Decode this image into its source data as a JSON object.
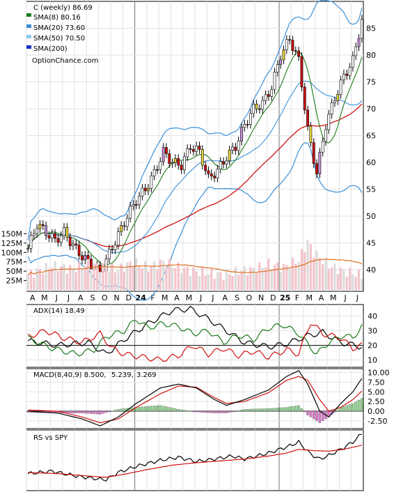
{
  "chart_data": [
    {
      "type": "candlestick",
      "title": "C (weekly) 86.69",
      "watermark": "OptionChance.com",
      "ylim": [
        36,
        90
      ],
      "yticks": [
        40,
        45,
        50,
        55,
        60,
        65,
        70,
        75,
        80,
        85
      ],
      "x_month_labels": [
        "A",
        "M",
        "J",
        "J",
        "A",
        "S",
        "O",
        "N",
        "D",
        "24",
        "F",
        "M",
        "A",
        "M",
        "J",
        "J",
        "A",
        "S",
        "O",
        "N",
        "D",
        "25",
        "F",
        "M",
        "A",
        "M",
        "J",
        "J"
      ],
      "legend": [
        {
          "label": "SMA(8) 80.16",
          "color": "#1a7a1a"
        },
        {
          "label": "SMA(20) 73.60",
          "color": "#3a8fd8"
        },
        {
          "label": "SMA(50) 70.50",
          "color": "#8cc8f0"
        },
        {
          "label": "SMA(200)",
          "color": "#1a2fd0"
        }
      ],
      "sma50_color": "#d01010",
      "band_color": "#e6d23a",
      "close_anchors": [
        [
          0,
          44
        ],
        [
          3,
          48.5
        ],
        [
          6,
          47
        ],
        [
          9,
          45.5
        ],
        [
          12,
          47
        ],
        [
          15,
          44.5
        ],
        [
          18,
          42.5
        ],
        [
          21,
          41
        ],
        [
          24,
          39.5
        ],
        [
          27,
          43
        ],
        [
          30,
          46.5
        ],
        [
          33,
          50
        ],
        [
          36,
          53
        ],
        [
          39,
          55
        ],
        [
          42,
          58
        ],
        [
          45,
          62
        ],
        [
          48,
          60
        ],
        [
          51,
          59.5
        ],
        [
          54,
          63
        ],
        [
          57,
          62
        ],
        [
          60,
          57
        ],
        [
          63,
          58.5
        ],
        [
          66,
          61
        ],
        [
          69,
          63
        ],
        [
          72,
          67
        ],
        [
          75,
          70
        ],
        [
          78,
          71
        ],
        [
          81,
          74
        ],
        [
          84,
          80
        ],
        [
          87,
          83
        ],
        [
          90,
          79
        ],
        [
          93,
          66
        ],
        [
          96,
          58
        ],
        [
          99,
          67
        ],
        [
          102,
          72
        ],
        [
          105,
          76
        ],
        [
          108,
          79
        ],
        [
          111,
          86.5
        ]
      ]
    },
    {
      "type": "bar",
      "title": "Volume",
      "yticks": [
        "25M",
        "50M",
        "75M",
        "100M",
        "125M",
        "150M"
      ],
      "ylim": [
        0,
        160
      ],
      "avg_color": "#e07020",
      "vol_anchors": [
        [
          0,
          40
        ],
        [
          8,
          65
        ],
        [
          15,
          55
        ],
        [
          20,
          70
        ],
        [
          25,
          60
        ],
        [
          30,
          55
        ],
        [
          35,
          75
        ],
        [
          40,
          60
        ],
        [
          45,
          75
        ],
        [
          50,
          60
        ],
        [
          55,
          50
        ],
        [
          60,
          45
        ],
        [
          65,
          40
        ],
        [
          70,
          50
        ],
        [
          75,
          55
        ],
        [
          80,
          70
        ],
        [
          85,
          60
        ],
        [
          90,
          80
        ],
        [
          93,
          130
        ],
        [
          95,
          100
        ],
        [
          100,
          65
        ],
        [
          105,
          50
        ],
        [
          111,
          40
        ]
      ]
    },
    {
      "type": "line",
      "title": "ADX(14) 18.49",
      "yticks": [
        10,
        20,
        30,
        40
      ],
      "ylim": [
        5,
        48
      ],
      "series": [
        {
          "color": "#000000",
          "anchors": [
            [
              0,
              23
            ],
            [
              10,
              20
            ],
            [
              20,
              22
            ],
            [
              26,
              14
            ],
            [
              32,
              24
            ],
            [
              40,
              35
            ],
            [
              48,
              44
            ],
            [
              54,
              45
            ],
            [
              60,
              38
            ],
            [
              66,
              30
            ],
            [
              72,
              22
            ],
            [
              80,
              19
            ],
            [
              86,
              21
            ],
            [
              92,
              26
            ],
            [
              98,
              29
            ],
            [
              104,
              22
            ],
            [
              111,
              19
            ]
          ]
        },
        {
          "color": "#1a7a1a",
          "anchors": [
            [
              0,
              25
            ],
            [
              8,
              18
            ],
            [
              16,
              14
            ],
            [
              22,
              17
            ],
            [
              26,
              26
            ],
            [
              32,
              30
            ],
            [
              36,
              38
            ],
            [
              40,
              32
            ],
            [
              45,
              35
            ],
            [
              50,
              33
            ],
            [
              55,
              28
            ],
            [
              60,
              30
            ],
            [
              65,
              22
            ],
            [
              70,
              27
            ],
            [
              75,
              24
            ],
            [
              80,
              32
            ],
            [
              85,
              34
            ],
            [
              90,
              28
            ],
            [
              96,
              14
            ],
            [
              100,
              22
            ],
            [
              105,
              27
            ],
            [
              108,
              25
            ],
            [
              111,
              33
            ]
          ]
        },
        {
          "color": "#d01010",
          "anchors": [
            [
              0,
              26
            ],
            [
              6,
              30
            ],
            [
              12,
              25
            ],
            [
              18,
              22
            ],
            [
              24,
              28
            ],
            [
              28,
              18
            ],
            [
              32,
              14
            ],
            [
              38,
              12
            ],
            [
              44,
              10
            ],
            [
              50,
              13
            ],
            [
              55,
              20
            ],
            [
              60,
              14
            ],
            [
              65,
              18
            ],
            [
              70,
              13
            ],
            [
              75,
              16
            ],
            [
              80,
              12
            ],
            [
              86,
              17
            ],
            [
              90,
              14
            ],
            [
              94,
              36
            ],
            [
              98,
              28
            ],
            [
              104,
              25
            ],
            [
              108,
              18
            ],
            [
              111,
              20
            ]
          ]
        }
      ]
    },
    {
      "type": "bar",
      "title": "MACD(8,40,9) 8.500,",
      "values_text": [
        "5.239,",
        "3.269"
      ],
      "values_colors": [
        "#d01010",
        "#1a2fd0"
      ],
      "yticks": [
        -2.5,
        0,
        2.5,
        5,
        7.5,
        10
      ],
      "ytick_labels": [
        "-2.50",
        "0.00",
        "2.50",
        "5.00",
        "7.50",
        "10.00"
      ],
      "ylim": [
        -4.5,
        11
      ],
      "macd_anchors": [
        [
          0,
          0
        ],
        [
          10,
          -0.5
        ],
        [
          18,
          -2
        ],
        [
          24,
          -3.8
        ],
        [
          30,
          -1.5
        ],
        [
          36,
          2
        ],
        [
          44,
          6
        ],
        [
          50,
          7
        ],
        [
          56,
          6
        ],
        [
          62,
          3
        ],
        [
          66,
          1.5
        ],
        [
          72,
          3
        ],
        [
          80,
          5.5
        ],
        [
          86,
          9
        ],
        [
          90,
          10.5
        ],
        [
          93,
          7
        ],
        [
          97,
          0
        ],
        [
          100,
          -1.5
        ],
        [
          104,
          2
        ],
        [
          108,
          5
        ],
        [
          111,
          8.5
        ]
      ],
      "signal_anchors": [
        [
          0,
          0.3
        ],
        [
          10,
          0
        ],
        [
          18,
          -1.5
        ],
        [
          24,
          -3
        ],
        [
          30,
          -2
        ],
        [
          36,
          1
        ],
        [
          44,
          4.5
        ],
        [
          50,
          6.5
        ],
        [
          56,
          6.2
        ],
        [
          62,
          3.5
        ],
        [
          66,
          2
        ],
        [
          72,
          2.5
        ],
        [
          80,
          4.8
        ],
        [
          86,
          8
        ],
        [
          90,
          9
        ],
        [
          93,
          8
        ],
        [
          97,
          3
        ],
        [
          100,
          0
        ],
        [
          104,
          1
        ],
        [
          108,
          3
        ],
        [
          111,
          5.2
        ]
      ]
    },
    {
      "type": "line",
      "title": "RS vs SPY",
      "ylim": [
        0,
        100
      ],
      "series": [
        {
          "color": "#000000",
          "anchors": [
            [
              0,
              28
            ],
            [
              8,
              32
            ],
            [
              16,
              24
            ],
            [
              22,
              20
            ],
            [
              26,
              18
            ],
            [
              30,
              30
            ],
            [
              36,
              40
            ],
            [
              44,
              50
            ],
            [
              50,
              55
            ],
            [
              56,
              48
            ],
            [
              62,
              52
            ],
            [
              68,
              57
            ],
            [
              72,
              52
            ],
            [
              80,
              62
            ],
            [
              86,
              72
            ],
            [
              90,
              80
            ],
            [
              94,
              60
            ],
            [
              97,
              52
            ],
            [
              100,
              58
            ],
            [
              104,
              68
            ],
            [
              108,
              80
            ],
            [
              111,
              94
            ]
          ]
        },
        {
          "color": "#d01010",
          "anchors": [
            [
              0,
              30
            ],
            [
              10,
              28
            ],
            [
              20,
              24
            ],
            [
              26,
              22
            ],
            [
              32,
              27
            ],
            [
              40,
              35
            ],
            [
              48,
              42
            ],
            [
              56,
              46
            ],
            [
              64,
              49
            ],
            [
              72,
              52
            ],
            [
              80,
              57
            ],
            [
              86,
              62
            ],
            [
              90,
              68
            ],
            [
              95,
              66
            ],
            [
              100,
              65
            ],
            [
              105,
              68
            ],
            [
              111,
              75
            ]
          ]
        }
      ]
    }
  ]
}
